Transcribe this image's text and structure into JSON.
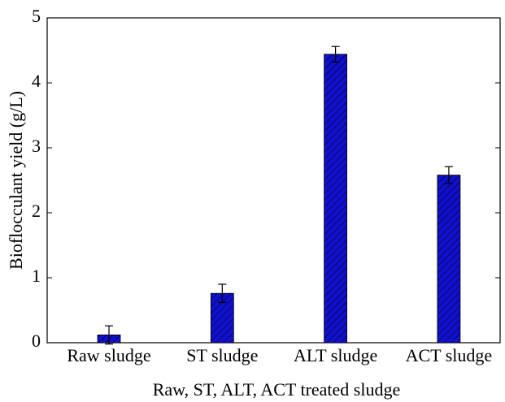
{
  "chart_data": {
    "type": "bar",
    "x_label": "Raw, ST, ALT, ACT treated sludge",
    "y_label": "Bioflocculant yield (g/L)",
    "categories": [
      "Raw sludge",
      "ST sludge",
      "ALT sludge",
      "ACT sludge"
    ],
    "values": [
      0.12,
      0.76,
      4.44,
      2.58
    ],
    "errors": [
      0.14,
      0.14,
      0.12,
      0.13
    ],
    "color": "#1010d0",
    "ylim": [
      0,
      5
    ],
    "yticks": [
      0,
      1,
      2,
      3,
      4,
      5
    ],
    "grid": false
  }
}
